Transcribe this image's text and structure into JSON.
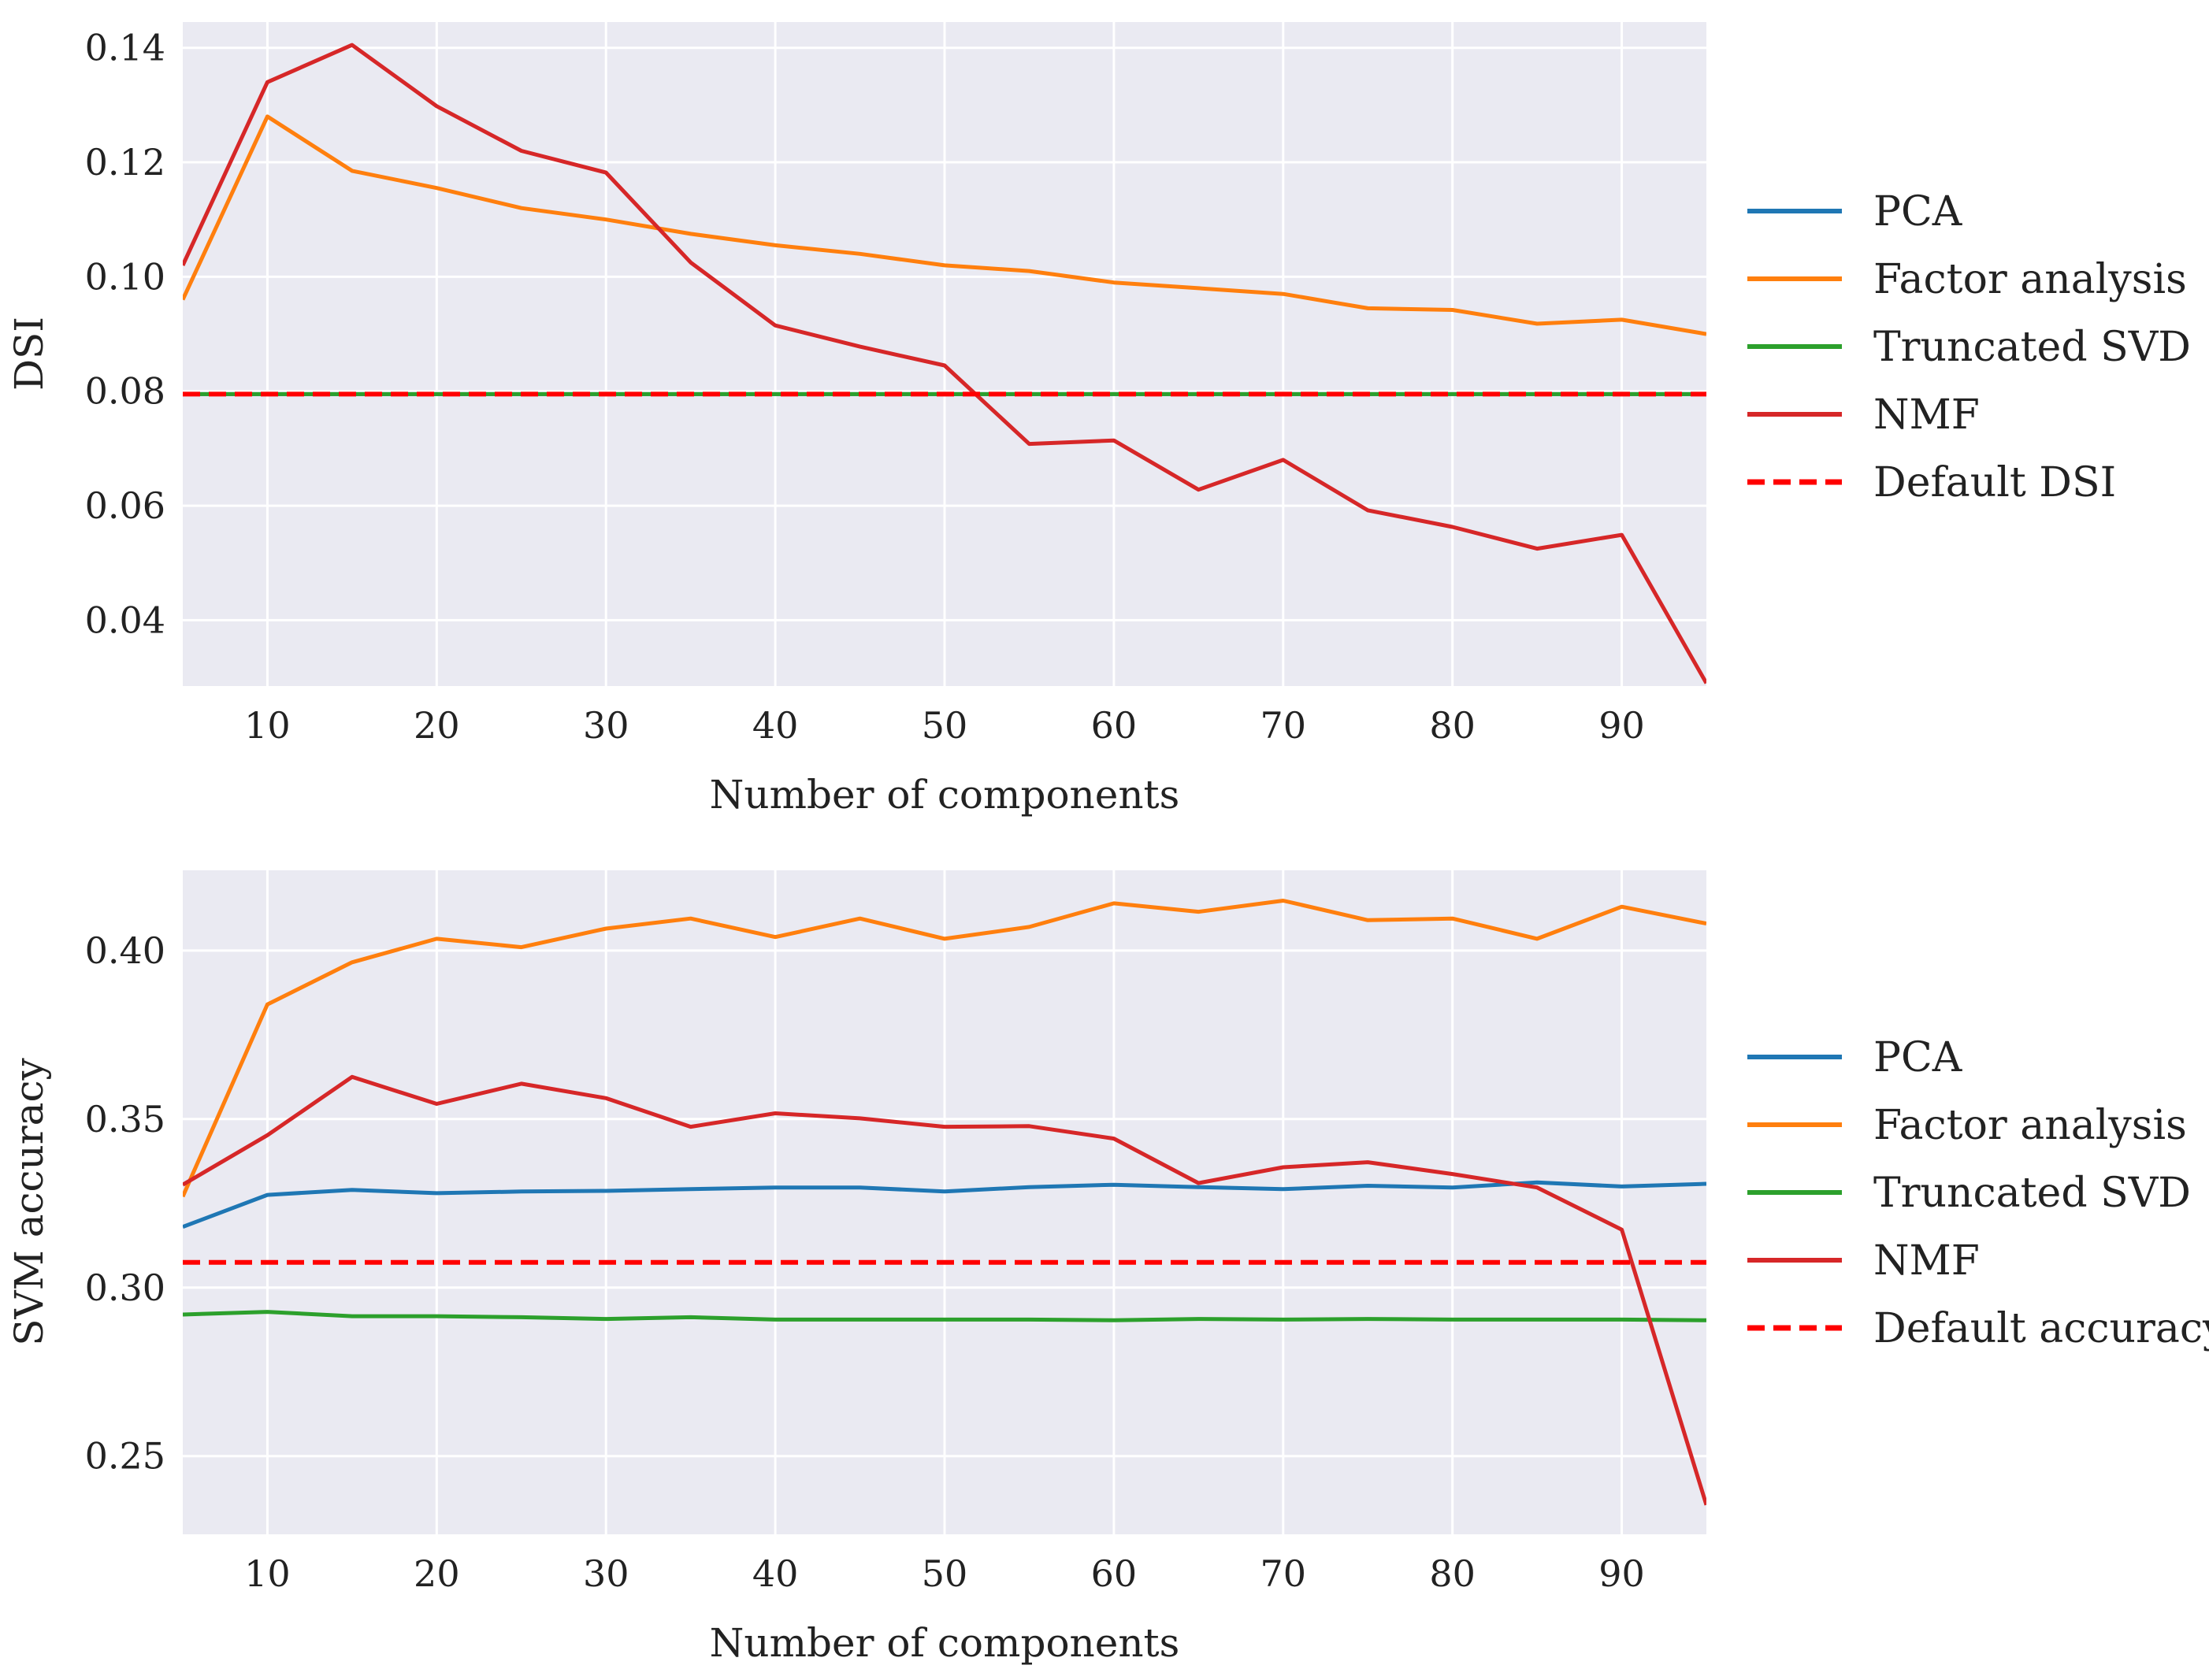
{
  "colors": {
    "pca": "#1f77b4",
    "factor": "#ff7f0e",
    "svd": "#2ca02c",
    "nmf": "#d62728",
    "default": "#ff0000",
    "panel_bg": "#eaeaf2",
    "grid": "#ffffff"
  },
  "chart_data": [
    {
      "type": "line",
      "xlabel": "Number of components",
      "ylabel": "DSI",
      "xlim": [
        5,
        95
      ],
      "ylim": [
        0.0285,
        0.1445
      ],
      "xticks": [
        10,
        20,
        30,
        40,
        50,
        60,
        70,
        80,
        90
      ],
      "yticks": [
        0.04,
        0.06,
        0.08,
        0.1,
        0.12,
        0.14
      ],
      "ytick_labels": [
        "0.04",
        "0.06",
        "0.08",
        "0.10",
        "0.12",
        "0.14"
      ],
      "grid": true,
      "legend_position": "right",
      "x": [
        5,
        10,
        15,
        20,
        25,
        30,
        35,
        40,
        45,
        50,
        55,
        60,
        65,
        70,
        75,
        80,
        85,
        90,
        95
      ],
      "series": [
        {
          "key": "pca",
          "name": "PCA",
          "style": "solid",
          "values": [
            0.0795,
            0.0795,
            0.0795,
            0.0795,
            0.0795,
            0.0795,
            0.0795,
            0.0795,
            0.0795,
            0.0795,
            0.0795,
            0.0795,
            0.0795,
            0.0795,
            0.0795,
            0.0795,
            0.0795,
            0.0795,
            0.0795
          ]
        },
        {
          "key": "factor",
          "name": "Factor analysis",
          "style": "solid",
          "values": [
            0.096,
            0.128,
            0.1185,
            0.1155,
            0.112,
            0.11,
            0.1075,
            0.1055,
            0.104,
            0.102,
            0.101,
            0.099,
            0.098,
            0.097,
            0.0945,
            0.0942,
            0.0918,
            0.0925,
            0.09
          ]
        },
        {
          "key": "svd",
          "name": "Truncated SVD",
          "style": "solid",
          "values": [
            0.0795,
            0.0795,
            0.0795,
            0.0795,
            0.0795,
            0.0795,
            0.0795,
            0.0795,
            0.0795,
            0.0795,
            0.0795,
            0.0795,
            0.0795,
            0.0795,
            0.0795,
            0.0795,
            0.0795,
            0.0795,
            0.0795
          ]
        },
        {
          "key": "nmf",
          "name": "NMF",
          "style": "solid",
          "values": [
            0.102,
            0.134,
            0.1405,
            0.1298,
            0.122,
            0.1182,
            0.1025,
            0.0915,
            0.0878,
            0.0845,
            0.0708,
            0.0714,
            0.0628,
            0.068,
            0.0592,
            0.0563,
            0.0525,
            0.0549,
            0.029
          ]
        },
        {
          "key": "default",
          "name": "Default DSI",
          "style": "dashed",
          "values": [
            0.0795,
            0.0795,
            0.0795,
            0.0795,
            0.0795,
            0.0795,
            0.0795,
            0.0795,
            0.0795,
            0.0795,
            0.0795,
            0.0795,
            0.0795,
            0.0795,
            0.0795,
            0.0795,
            0.0795,
            0.0795,
            0.0795
          ]
        }
      ],
      "legend_order": [
        "pca",
        "factor",
        "svd",
        "nmf",
        "default"
      ]
    },
    {
      "type": "line",
      "xlabel": "Number of components",
      "ylabel": "SVM accuracy",
      "xlim": [
        5,
        95
      ],
      "ylim": [
        0.2268,
        0.4238
      ],
      "xticks": [
        10,
        20,
        30,
        40,
        50,
        60,
        70,
        80,
        90
      ],
      "yticks": [
        0.25,
        0.3,
        0.35,
        0.4
      ],
      "ytick_labels": [
        "0.25",
        "0.30",
        "0.35",
        "0.40"
      ],
      "grid": true,
      "legend_position": "right",
      "x": [
        5,
        10,
        15,
        20,
        25,
        30,
        35,
        40,
        45,
        50,
        55,
        60,
        65,
        70,
        75,
        80,
        85,
        90,
        95
      ],
      "series": [
        {
          "key": "pca",
          "name": "PCA",
          "style": "solid",
          "values": [
            0.318,
            0.3275,
            0.329,
            0.328,
            0.3285,
            0.3287,
            0.3292,
            0.3297,
            0.3297,
            0.3285,
            0.3298,
            0.3305,
            0.3298,
            0.3292,
            0.3302,
            0.3297,
            0.3312,
            0.33,
            0.3308
          ]
        },
        {
          "key": "factor",
          "name": "Factor analysis",
          "style": "solid",
          "values": [
            0.327,
            0.384,
            0.3965,
            0.4035,
            0.401,
            0.4065,
            0.4095,
            0.404,
            0.4095,
            0.4035,
            0.407,
            0.414,
            0.4115,
            0.4148,
            0.409,
            0.4095,
            0.4035,
            0.413,
            0.408
          ]
        },
        {
          "key": "svd",
          "name": "Truncated SVD",
          "style": "solid",
          "values": [
            0.292,
            0.2928,
            0.2915,
            0.2915,
            0.2912,
            0.2907,
            0.2912,
            0.2905,
            0.2905,
            0.2905,
            0.2905,
            0.2903,
            0.2907,
            0.2905,
            0.2907,
            0.2905,
            0.2905,
            0.2905,
            0.2903
          ]
        },
        {
          "key": "nmf",
          "name": "NMF",
          "style": "solid",
          "values": [
            0.3305,
            0.3452,
            0.3625,
            0.3545,
            0.3605,
            0.3562,
            0.3477,
            0.3517,
            0.3502,
            0.3477,
            0.3479,
            0.3442,
            0.331,
            0.3357,
            0.3372,
            0.3337,
            0.3297,
            0.3172,
            0.2355
          ]
        },
        {
          "key": "default",
          "name": "Default accuracy",
          "style": "dashed",
          "values": [
            0.3075,
            0.3075,
            0.3075,
            0.3075,
            0.3075,
            0.3075,
            0.3075,
            0.3075,
            0.3075,
            0.3075,
            0.3075,
            0.3075,
            0.3075,
            0.3075,
            0.3075,
            0.3075,
            0.3075,
            0.3075,
            0.3075
          ]
        }
      ],
      "legend_order": [
        "pca",
        "factor",
        "svd",
        "nmf",
        "default"
      ]
    }
  ]
}
